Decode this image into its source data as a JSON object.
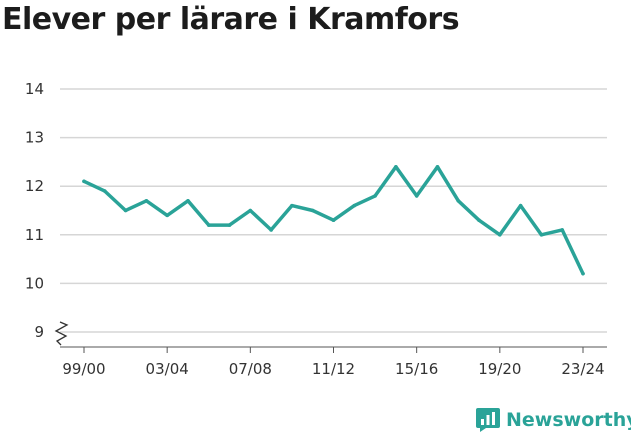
{
  "title": "Elever per lärare i Kramfors",
  "brand": {
    "name": "Newsworthy",
    "color": "#2aa398",
    "icon": "newsworthy-logo-icon"
  },
  "chart_data": {
    "type": "line",
    "title": "Elever per lärare i Kramfors",
    "xlabel": "",
    "ylabel": "",
    "ylim": [
      9,
      14
    ],
    "yticks": [
      9,
      10,
      11,
      12,
      13,
      14
    ],
    "y_axis_break": true,
    "grid": true,
    "x": [
      "99/00",
      "00/01",
      "01/02",
      "02/03",
      "03/04",
      "04/05",
      "05/06",
      "06/07",
      "07/08",
      "08/09",
      "09/10",
      "10/11",
      "11/12",
      "12/13",
      "13/14",
      "14/15",
      "15/16",
      "16/17",
      "17/18",
      "18/19",
      "19/20",
      "20/21",
      "21/22",
      "22/23",
      "23/24"
    ],
    "xticks": [
      "99/00",
      "03/04",
      "07/08",
      "11/12",
      "15/16",
      "19/20",
      "23/24"
    ],
    "series": [
      {
        "color": "#2aa398",
        "values": [
          12.1,
          11.9,
          11.5,
          11.7,
          11.4,
          11.7,
          11.2,
          11.2,
          11.5,
          11.1,
          11.6,
          11.5,
          11.3,
          11.6,
          11.8,
          12.4,
          11.8,
          12.4,
          11.7,
          11.3,
          11.0,
          11.6,
          11.0,
          11.1,
          10.2
        ]
      }
    ]
  }
}
